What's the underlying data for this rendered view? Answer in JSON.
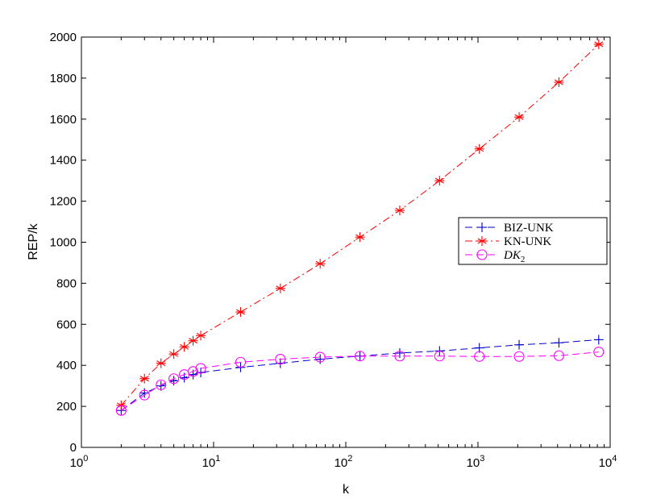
{
  "chart_data": {
    "type": "line",
    "title": "",
    "xlabel": "k",
    "ylabel": "REP/k",
    "xscale": "log",
    "xlim": [
      1,
      10000
    ],
    "ylim": [
      0,
      2000
    ],
    "yticks": [
      "0",
      "200",
      "400",
      "600",
      "800",
      "1000",
      "1200",
      "1400",
      "1600",
      "1800",
      "2000"
    ],
    "xticks": [
      {
        "base": "10",
        "exp": "0",
        "value": 1
      },
      {
        "base": "10",
        "exp": "1",
        "value": 10
      },
      {
        "base": "10",
        "exp": "2",
        "value": 100
      },
      {
        "base": "10",
        "exp": "3",
        "value": 1000
      },
      {
        "base": "10",
        "exp": "4",
        "value": 10000
      }
    ],
    "grid": false,
    "legend_position": "right",
    "series": [
      {
        "name": "BIZ-UNK",
        "color": "#0000cc",
        "line_style": "dashed",
        "marker": "plus",
        "x": [
          2,
          3,
          4,
          5,
          6,
          7,
          8,
          16,
          32,
          64,
          128,
          256,
          512,
          1024,
          2048,
          4096,
          8192
        ],
        "y": [
          180,
          265,
          300,
          325,
          340,
          355,
          365,
          390,
          410,
          430,
          445,
          460,
          470,
          485,
          500,
          510,
          525
        ]
      },
      {
        "name": "KN-UNK",
        "color": "#ff0000",
        "line_style": "dashdot",
        "marker": "asterisk",
        "x": [
          2,
          3,
          4,
          5,
          6,
          7,
          8,
          16,
          32,
          64,
          128,
          256,
          512,
          1024,
          2048,
          4096,
          8192
        ],
        "y": [
          205,
          335,
          410,
          455,
          490,
          520,
          545,
          660,
          775,
          895,
          1025,
          1155,
          1300,
          1455,
          1610,
          1780,
          1965
        ]
      },
      {
        "name": "DK2",
        "color": "#ff00ff",
        "line_style": "dashed",
        "marker": "circle",
        "x": [
          2,
          3,
          4,
          5,
          6,
          7,
          8,
          16,
          32,
          64,
          128,
          256,
          512,
          1024,
          2048,
          4096,
          8192
        ],
        "y": [
          180,
          255,
          305,
          335,
          355,
          370,
          385,
          415,
          430,
          440,
          445,
          445,
          445,
          443,
          443,
          447,
          465
        ]
      }
    ]
  }
}
